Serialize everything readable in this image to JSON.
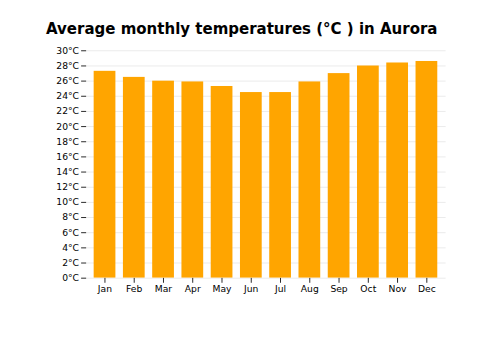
{
  "chart_data": {
    "type": "bar",
    "title": "Average monthly temperatures (°C ) in Aurora",
    "categories": [
      "Jan",
      "Feb",
      "Mar",
      "Apr",
      "May",
      "Jun",
      "Jul",
      "Aug",
      "Sep",
      "Oct",
      "Nov",
      "Dec"
    ],
    "values": [
      27.3,
      26.5,
      26.0,
      25.9,
      25.3,
      24.5,
      24.5,
      25.9,
      27.0,
      28.0,
      28.4,
      28.6
    ],
    "color": "#FFA500",
    "ylim": [
      0,
      30
    ],
    "yticks": [
      {
        "value": 0,
        "label": "0°C"
      },
      {
        "value": 2,
        "label": "2°C"
      },
      {
        "value": 4,
        "label": "4°C"
      },
      {
        "value": 6,
        "label": "6°C"
      },
      {
        "value": 8,
        "label": "8°C"
      },
      {
        "value": 10,
        "label": "10°C"
      },
      {
        "value": 12,
        "label": "12°C"
      },
      {
        "value": 14,
        "label": "14°C"
      },
      {
        "value": 16,
        "label": "16°C"
      },
      {
        "value": 18,
        "label": "18°C"
      },
      {
        "value": 20,
        "label": "20°C"
      },
      {
        "value": 22,
        "label": "22°C"
      },
      {
        "value": 24,
        "label": "24°C"
      },
      {
        "value": 26,
        "label": "26°C"
      },
      {
        "value": 28,
        "label": "28°C"
      },
      {
        "value": 30,
        "label": "30°C"
      }
    ],
    "grid": true
  }
}
